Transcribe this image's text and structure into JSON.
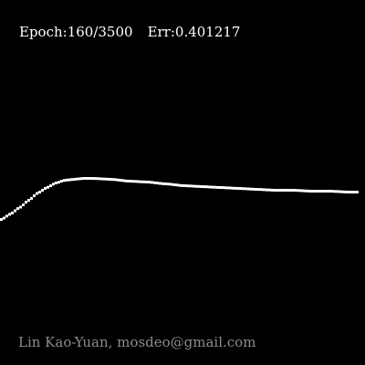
{
  "status": {
    "epoch_text": "Epoch:160/3500",
    "error_text": "Err:0.401217"
  },
  "credit": "Lin Kao-Yuan, mosdeo@gmail.com",
  "colors": {
    "background": "#000000",
    "curve": "#ffffff",
    "status_text": "#ffffff",
    "credit_text": "#8c8c8c"
  }
}
